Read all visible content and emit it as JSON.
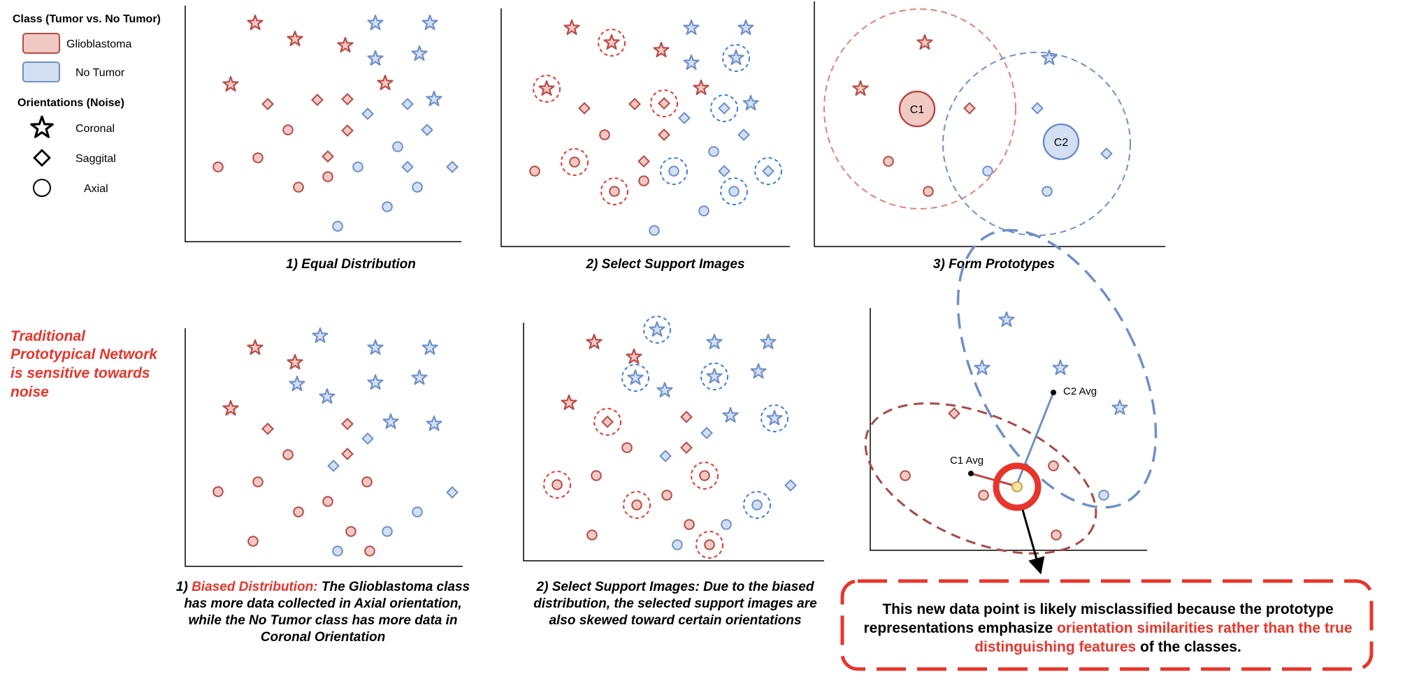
{
  "legend": {
    "class_title": "Class (Tumor vs. No Tumor)",
    "glioblastoma": "Glioblastoma",
    "no_tumor": "No Tumor",
    "orient_title": "Orientations (Noise)",
    "coronal": "Coronal",
    "saggital": "Saggital",
    "axial": "Axial"
  },
  "colors": {
    "glioblastoma_fill": "#f1c9c4",
    "glioblastoma_stroke": "#b84a45",
    "no_tumor_fill": "#d3e0f3",
    "no_tumor_stroke": "#6f8fc9",
    "accent_red": "#e8352c",
    "query_point": "#f6e3a1"
  },
  "side_note": [
    "Traditional",
    "Prototypical Network",
    "is sensitive towards",
    "noise"
  ],
  "top_row": {
    "panel1_caption": "1) Equal Distribution",
    "panel2_caption": "2) Select Support Images",
    "panel3_caption": "3) Form Prototypes",
    "c1": "C1",
    "c2": "C2"
  },
  "bottom_row": {
    "panel1_caption": {
      "prefix": "1) ",
      "highlight": "Biased Distribution:",
      "line1_rest": " The Glioblastoma class",
      "line2": "has more data collected in Axial orientation,",
      "line3": "while the No Tumor class has more data in",
      "line4": "Coronal Orientation"
    },
    "panel2_caption": [
      "2) Select Support Images: Due to the biased",
      "distribution, the selected support images are",
      "also skewed toward certain orientations"
    ],
    "c1_avg": "C1 Avg",
    "c2_avg": "C2 Avg"
  },
  "callout": {
    "line1": "This new data point is likely misclassified because the prototype",
    "line2_a": "representations emphasize ",
    "line2_b": "orientation similarities rather than the true",
    "line3_a": "distinguishing features",
    "line3_b": " of the classes."
  }
}
